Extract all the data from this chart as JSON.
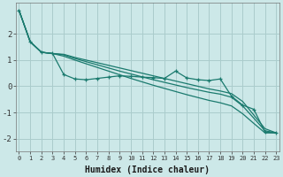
{
  "xlabel": "Humidex (Indice chaleur)",
  "background_color": "#cce8e8",
  "grid_color": "#aacccc",
  "line_color": "#1a7a6e",
  "x_values": [
    0,
    1,
    2,
    3,
    4,
    5,
    6,
    7,
    8,
    9,
    10,
    11,
    12,
    13,
    14,
    15,
    16,
    17,
    18,
    19,
    20,
    21,
    22,
    23
  ],
  "line1_y": [
    2.9,
    1.7,
    1.3,
    1.25,
    0.45,
    0.28,
    0.25,
    0.3,
    0.35,
    0.4,
    0.38,
    0.35,
    0.33,
    0.3,
    0.58,
    0.32,
    0.25,
    0.22,
    0.28,
    -0.38,
    -0.72,
    -0.88,
    -1.75,
    -1.78
  ],
  "line2_y": [
    2.9,
    1.7,
    1.3,
    1.25,
    1.22,
    1.1,
    1.0,
    0.9,
    0.8,
    0.7,
    0.6,
    0.5,
    0.4,
    0.3,
    0.2,
    0.1,
    0.0,
    -0.1,
    -0.18,
    -0.28,
    -0.58,
    -1.1,
    -1.62,
    -1.78
  ],
  "line3_y": [
    2.9,
    1.7,
    1.3,
    1.25,
    1.2,
    1.06,
    0.94,
    0.82,
    0.7,
    0.58,
    0.47,
    0.36,
    0.25,
    0.15,
    0.05,
    -0.05,
    -0.14,
    -0.23,
    -0.3,
    -0.42,
    -0.75,
    -1.22,
    -1.7,
    -1.78
  ],
  "line4_y": [
    2.9,
    1.7,
    1.3,
    1.25,
    1.15,
    1.0,
    0.86,
    0.72,
    0.58,
    0.44,
    0.3,
    0.17,
    0.04,
    -0.08,
    -0.2,
    -0.32,
    -0.43,
    -0.54,
    -0.63,
    -0.75,
    -1.05,
    -1.42,
    -1.78,
    -1.78
  ],
  "ylim": [
    -2.5,
    3.2
  ],
  "yticks": [
    -2,
    -1,
    0,
    1,
    2
  ],
  "xlim": [
    0,
    23
  ]
}
